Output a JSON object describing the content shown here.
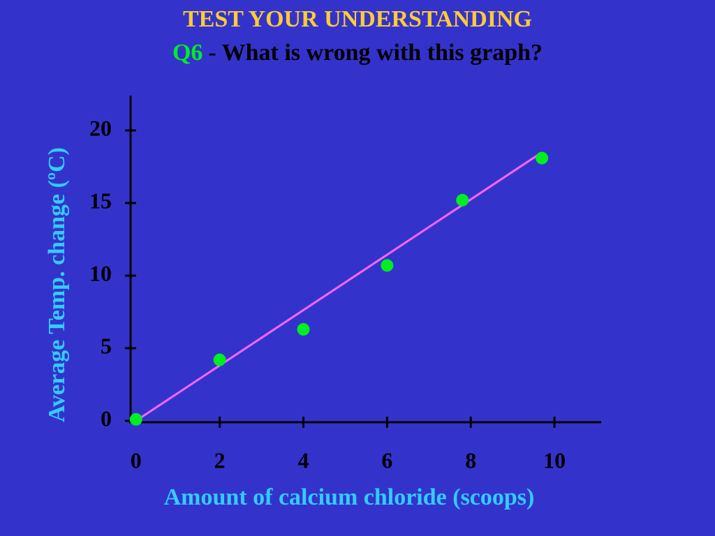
{
  "chart_data": {
    "type": "scatter",
    "title": "TEST YOUR UNDERSTANDING",
    "question_number": "Q6",
    "question": "- What is wrong with this graph?",
    "x_label": "Amount of calcium chloride (scoops)",
    "y_label": "Average Temp. change (ºC)",
    "x": [
      0,
      2,
      4,
      6,
      7.8,
      9.7
    ],
    "values": [
      0.1,
      4.2,
      6.3,
      10.7,
      15.2,
      18.1
    ],
    "color": "#00ee22",
    "trendline": {
      "x": [
        0,
        9.6
      ],
      "values": [
        0,
        18.3
      ],
      "color": "#ff66ff"
    },
    "xlim": [
      -0.13,
      11.1
    ],
    "xticks": [
      0,
      2,
      4,
      6,
      8,
      10
    ],
    "ylim": [
      -0.1,
      22.4
    ],
    "yticks": [
      0,
      5,
      10,
      15,
      20
    ]
  }
}
